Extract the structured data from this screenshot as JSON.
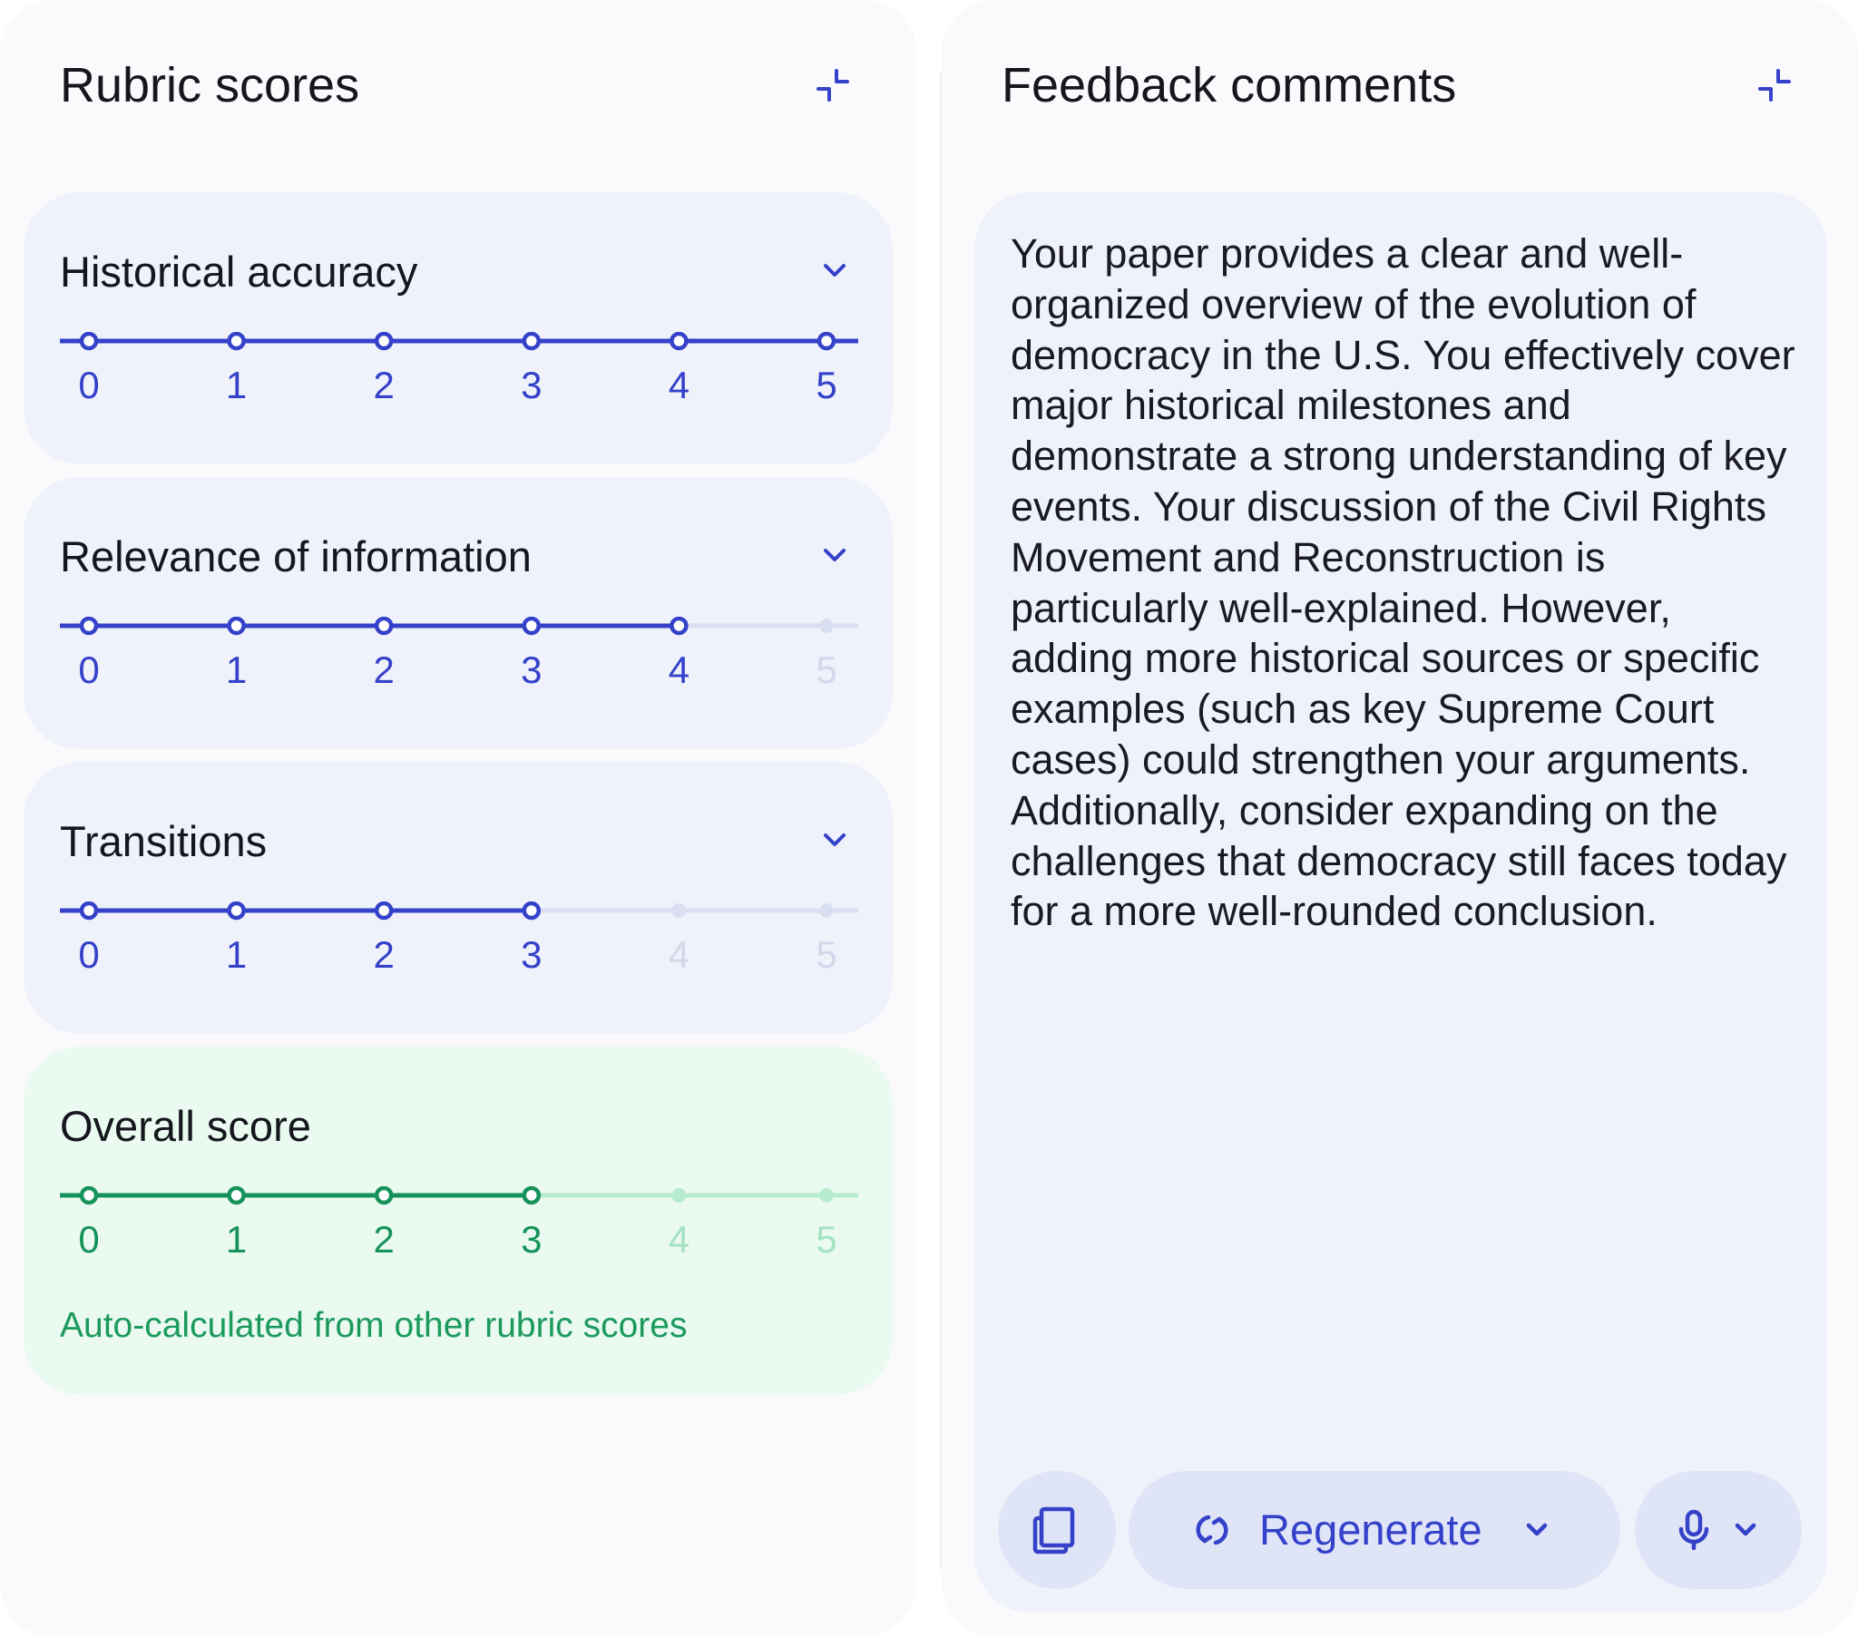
{
  "rubric_panel": {
    "title": "Rubric scores",
    "collapse_icon": "collapse-icon"
  },
  "colors": {
    "accent": "#3441c9",
    "accent_muted": "#d9dff0",
    "tick_muted": "#d2d8ea",
    "success": "#16935a",
    "success_muted": "#b7ebcd",
    "tick_success_muted": "#a6e2c2"
  },
  "rubrics": [
    {
      "title": "Historical accuracy",
      "score": 5,
      "scale": [
        "0",
        "1",
        "2",
        "3",
        "4",
        "5"
      ]
    },
    {
      "title": "Relevance of information",
      "score": 4,
      "scale": [
        "0",
        "1",
        "2",
        "3",
        "4",
        "5"
      ]
    },
    {
      "title": "Transitions",
      "score": 3,
      "scale": [
        "0",
        "1",
        "2",
        "3",
        "4",
        "5"
      ]
    }
  ],
  "overall": {
    "title": "Overall score",
    "score": 3,
    "scale": [
      "0",
      "1",
      "2",
      "3",
      "4",
      "5"
    ],
    "note": "Auto-calculated from other rubric scores"
  },
  "feedback_panel": {
    "title": "Feedback comments",
    "collapse_icon": "collapse-icon",
    "text": "Your paper provides a clear and well-organized overview of the evolution of democracy in the U.S. You effectively cover major historical milestones and demonstrate a strong understanding of key events. Your discussion of the Civil Rights Movement and Reconstruction is particularly well-explained. However, adding more historical sources or specific examples (such as key Supreme Court cases) could strengthen your arguments. Additionally, consider expanding on the challenges that democracy still faces today for a more well-rounded conclusion.",
    "actions": {
      "copy_icon": "copy-icon",
      "regenerate_label": "Regenerate",
      "regenerate_icon": "refresh-icon",
      "mic_icon": "microphone-icon"
    }
  }
}
